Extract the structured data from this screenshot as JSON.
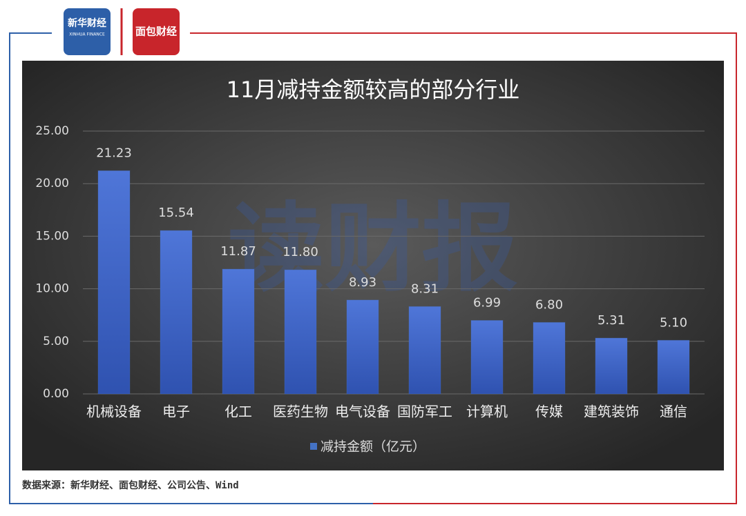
{
  "header": {
    "logo_left": "新华财经",
    "logo_left_sub": "XINHUA FINANCE",
    "logo_right": "面包财经"
  },
  "watermark": "读财报",
  "footer": {
    "source": "数据来源：新华财经、面包财经、公司公告、Wind"
  },
  "chart_data": {
    "type": "bar",
    "title": "11月减持金额较高的部分行业",
    "categories": [
      "机械设备",
      "电子",
      "化工",
      "医药生物",
      "电气设备",
      "国防军工",
      "计算机",
      "传媒",
      "建筑装饰",
      "通信"
    ],
    "series": [
      {
        "name": "减持金额（亿元）",
        "color": "#4472c4",
        "values": [
          21.23,
          15.54,
          11.87,
          11.8,
          8.93,
          8.31,
          6.99,
          6.8,
          5.31,
          5.1
        ],
        "value_labels": [
          "21.23",
          "15.54",
          "11.87",
          "11.80",
          "8.93",
          "8.31",
          "6.99",
          "6.80",
          "5.31",
          "5.10"
        ]
      }
    ],
    "ylim": [
      0,
      25
    ],
    "yticks": [
      {
        "value": 0,
        "label": "0.00"
      },
      {
        "value": 5,
        "label": "5.00"
      },
      {
        "value": 10,
        "label": "10.00"
      },
      {
        "value": 15,
        "label": "15.00"
      },
      {
        "value": 20,
        "label": "20.00"
      },
      {
        "value": 25,
        "label": "25.00"
      }
    ],
    "grid": true,
    "legend": "bottom"
  }
}
